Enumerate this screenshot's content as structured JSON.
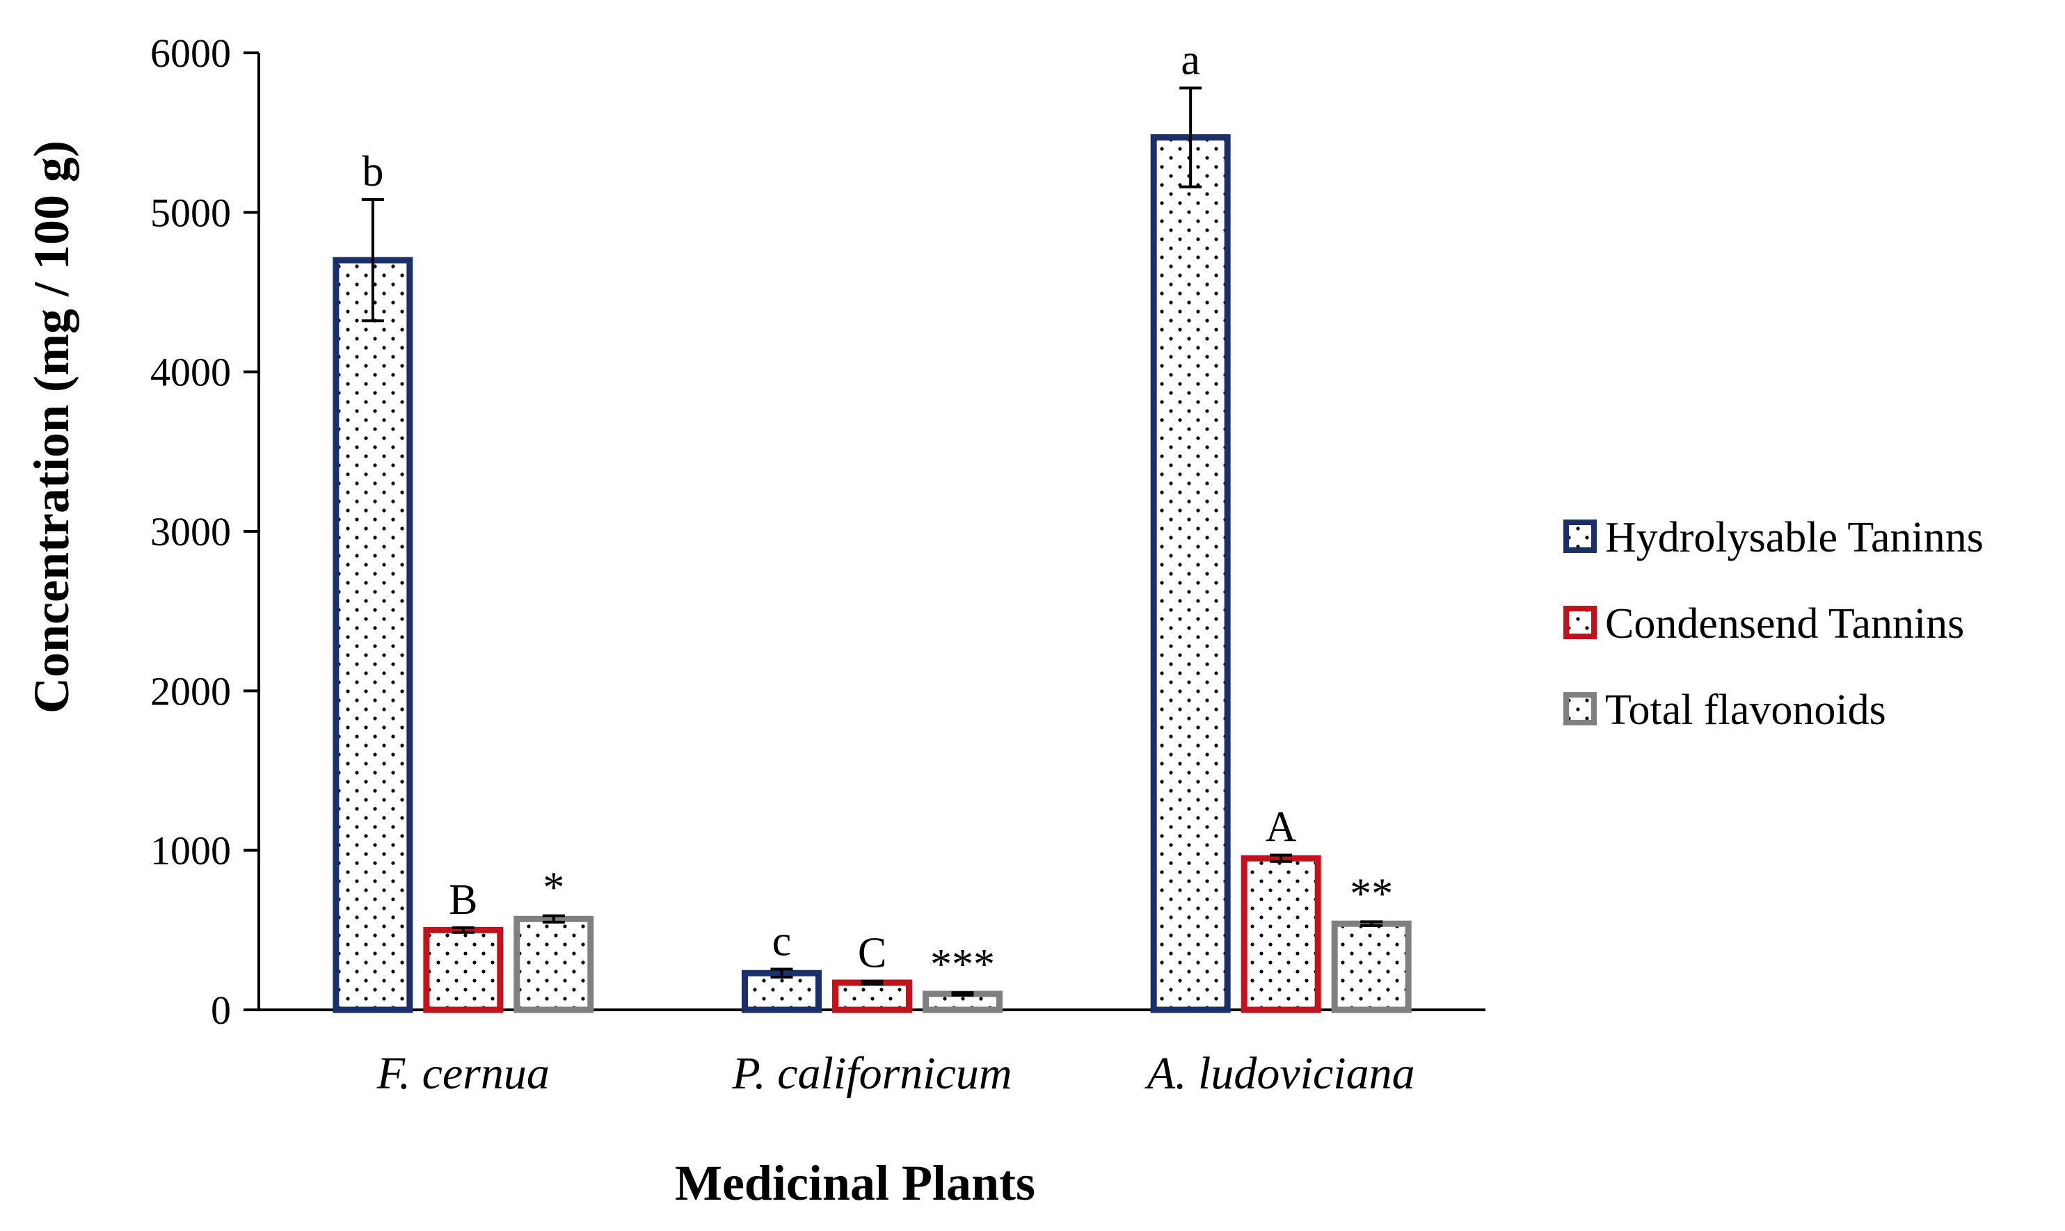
{
  "chart_data": {
    "type": "bar",
    "title": "",
    "xlabel": "Medicinal Plants",
    "ylabel": "Concentration (mg / 100 g)",
    "ylim": [
      0,
      6000
    ],
    "yticks": [
      0,
      1000,
      2000,
      3000,
      4000,
      5000,
      6000
    ],
    "ytick_labels": [
      "0",
      "1000",
      "2000",
      "3000",
      "4000",
      "5000",
      "6000"
    ],
    "grid": false,
    "legend_position": "right",
    "categories": [
      "F. cernua",
      "P. californicum",
      "A. ludoviciana"
    ],
    "series": [
      {
        "name": "Hydrolysable Taninns",
        "color": "#1b2f6b",
        "values": [
          4700,
          230,
          5470
        ],
        "errors": [
          380,
          25,
          310
        ],
        "labels": [
          "b",
          "c",
          "a"
        ]
      },
      {
        "name": "Condensend Tannins",
        "color": "#c0141c",
        "values": [
          500,
          170,
          950
        ],
        "errors": [
          15,
          10,
          20
        ],
        "labels": [
          "B",
          "C",
          "A"
        ]
      },
      {
        "name": "Total flavonoids",
        "color": "#808080",
        "values": [
          570,
          100,
          540
        ],
        "errors": [
          20,
          8,
          12
        ],
        "labels": [
          "*",
          "***",
          "**"
        ]
      }
    ]
  }
}
